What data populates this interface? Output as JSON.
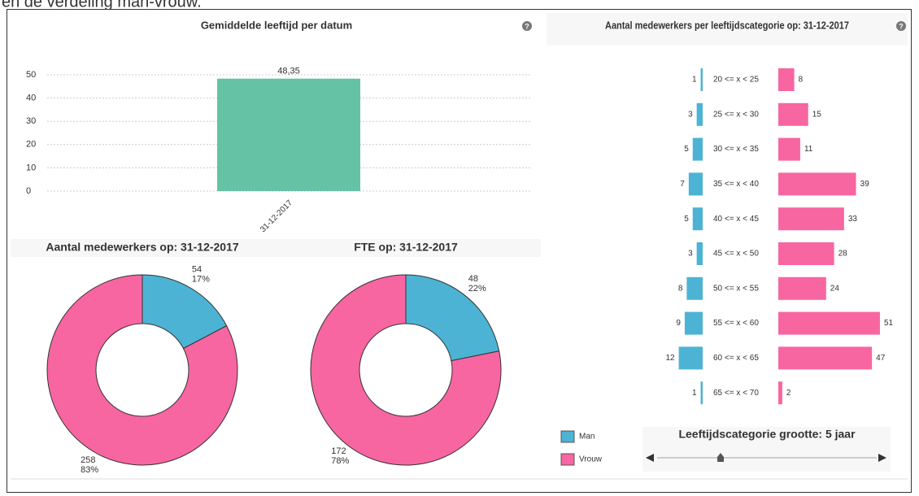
{
  "header_text": "en de verdeling man-vrouw.",
  "slider": {
    "label": "Leeftijdscategorie grootte: 5 jaar"
  },
  "chart_data": [
    {
      "type": "bar",
      "title": "Gemiddelde leeftijd per datum",
      "categories": [
        "31-12-2017"
      ],
      "values": [
        48.35
      ],
      "value_labels": [
        "48,35"
      ],
      "color": "#66c2a5",
      "ylim": [
        0,
        50
      ],
      "yticks": [
        0,
        10,
        20,
        30,
        40,
        50
      ],
      "grid": true
    },
    {
      "type": "pie",
      "title": "Aantal medewerkers op: 31-12-2017",
      "categories": [
        "Man",
        "Vrouw"
      ],
      "values": [
        54,
        258
      ],
      "percentages": [
        {
          "value": 17,
          "label": "17%"
        },
        {
          "value": 83,
          "label": "83%"
        }
      ],
      "colors": [
        "#4cb3d4",
        "#f766a1"
      ]
    },
    {
      "type": "pie",
      "title": "FTE op: 31-12-2017",
      "categories": [
        "Man",
        "Vrouw"
      ],
      "values": [
        48,
        172
      ],
      "percentages": [
        {
          "value": 22,
          "label": "22%"
        },
        {
          "value": 78,
          "label": "78%"
        }
      ],
      "colors": [
        "#4cb3d4",
        "#f766a1"
      ]
    },
    {
      "type": "pyramid",
      "title": "Aantal medewerkers per leeftijdscategorie op: 31-12-2017",
      "categories": [
        "20 <= x < 25",
        "25 <= x < 30",
        "30 <= x < 35",
        "35 <= x < 40",
        "40 <= x < 45",
        "45 <= x < 50",
        "50 <= x < 55",
        "55 <= x < 60",
        "60 <= x < 65",
        "65 <= x < 70"
      ],
      "series": [
        {
          "name": "Man",
          "color": "#4cb3d4",
          "values": [
            1,
            3,
            5,
            7,
            5,
            3,
            8,
            9,
            12,
            1
          ]
        },
        {
          "name": "Vrouw",
          "color": "#f766a1",
          "values": [
            8,
            15,
            11,
            39,
            33,
            28,
            24,
            51,
            47,
            2
          ]
        }
      ]
    }
  ]
}
